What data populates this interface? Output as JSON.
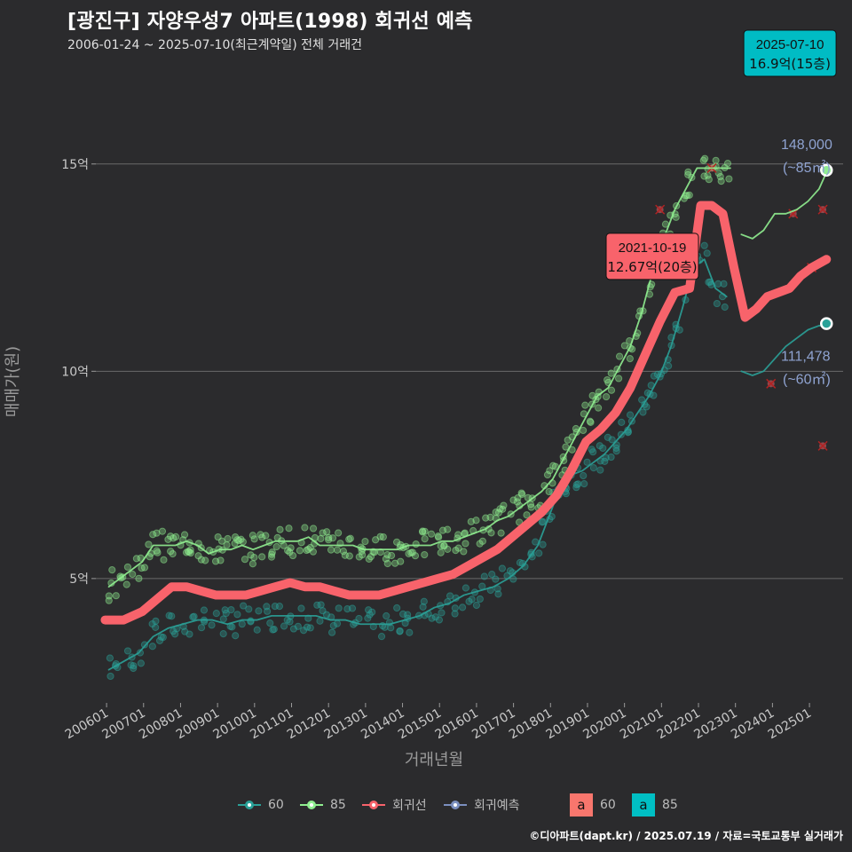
{
  "header": {
    "title": "[광진구] 자양우성7 아파트(1998) 회귀선 예측",
    "subtitle": "2006-01-24 ~ 2025-07-10(최근계약일) 전체 거래건"
  },
  "footer": "©디아파트(dapt.kr) / 2025.07.19 / 자료=국토교통부 실거래가",
  "colors": {
    "background": "#2b2b2d",
    "s60": "#2aa198",
    "s85": "#90ee90",
    "regression": "#f8636b",
    "forecast": "#7b8fbf",
    "callout_cyan": "#00bcc4"
  },
  "legend": {
    "items": [
      {
        "label": "60",
        "color": "#2aa198"
      },
      {
        "label": "85",
        "color": "#90ee90"
      },
      {
        "label": "회귀선",
        "color": "#f8636b"
      },
      {
        "label": "회귀예측",
        "color": "#7b8fbf"
      }
    ],
    "boxes": [
      {
        "letter": "a",
        "label": "60",
        "color": "#f8766d"
      },
      {
        "letter": "a",
        "label": "85",
        "color": "#00bfc4"
      }
    ]
  },
  "chart_data": {
    "type": "line",
    "title": "[광진구] 자양우성7 아파트(1998) 회귀선 예측",
    "xlabel": "거래년월",
    "ylabel": "매매가(원)",
    "x_ticks": [
      "200601",
      "200701",
      "200801",
      "200901",
      "201001",
      "201101",
      "201201",
      "201301",
      "201401",
      "201501",
      "201601",
      "201701",
      "201801",
      "201901",
      "202001",
      "202101",
      "202201",
      "202301",
      "202401",
      "202501"
    ],
    "y_ticks": [
      {
        "value": 5,
        "label": "5억"
      },
      {
        "value": 10,
        "label": "10억"
      },
      {
        "value": 15,
        "label": "15억"
      }
    ],
    "ylim": [
      2,
      17.5
    ],
    "xlim": [
      2005.75,
      2025.95
    ],
    "unit": "억",
    "series": [
      {
        "name": "60",
        "type": "line",
        "color": "#2aa198",
        "x": [
          2006.1,
          2006.5,
          2006.9,
          2007.3,
          2007.7,
          2008.1,
          2008.5,
          2008.9,
          2009.3,
          2009.7,
          2010.1,
          2010.5,
          2010.9,
          2011.3,
          2011.7,
          2012.1,
          2012.5,
          2012.9,
          2013.3,
          2013.7,
          2014.1,
          2014.5,
          2014.9,
          2015.3,
          2015.7,
          2016.1,
          2016.5,
          2016.9,
          2017.3,
          2017.7,
          2018.0,
          2018.3,
          2018.6,
          2018.9,
          2019.2,
          2019.5,
          2019.8,
          2020.1,
          2020.4,
          2020.7,
          2021.0,
          2021.3,
          2021.6,
          2021.9,
          2022.2,
          2022.5,
          2022.8
        ],
        "y": [
          2.8,
          3.0,
          3.2,
          3.6,
          3.8,
          3.9,
          4.0,
          4.0,
          3.9,
          4.0,
          4.0,
          4.1,
          4.1,
          4.1,
          4.1,
          4.0,
          4.0,
          3.9,
          3.9,
          3.9,
          4.0,
          4.1,
          4.3,
          4.4,
          4.6,
          4.7,
          4.8,
          5.0,
          5.3,
          5.8,
          6.5,
          7.2,
          7.5,
          7.6,
          7.8,
          8.0,
          8.3,
          8.6,
          9.0,
          9.4,
          9.9,
          10.6,
          11.5,
          12.5,
          12.7,
          12.0,
          11.8
        ]
      },
      {
        "name": "60 예측",
        "type": "line",
        "color": "#2aa198",
        "x": [
          2023.2,
          2023.5,
          2023.8,
          2024.1,
          2024.4,
          2024.7,
          2025.0,
          2025.3,
          2025.5
        ],
        "y": [
          10.0,
          9.9,
          10.0,
          10.3,
          10.6,
          10.8,
          11.0,
          11.1,
          11.1
        ]
      },
      {
        "name": "85",
        "type": "line",
        "color": "#90ee90",
        "x": [
          2006.1,
          2006.4,
          2006.7,
          2007.0,
          2007.3,
          2007.6,
          2007.9,
          2008.2,
          2008.5,
          2008.8,
          2009.1,
          2009.4,
          2009.7,
          2010.0,
          2010.3,
          2010.6,
          2010.9,
          2011.2,
          2011.5,
          2011.8,
          2012.1,
          2012.4,
          2012.7,
          2013.0,
          2013.3,
          2013.6,
          2013.9,
          2014.2,
          2014.5,
          2014.8,
          2015.1,
          2015.4,
          2015.7,
          2016.0,
          2016.3,
          2016.6,
          2016.9,
          2017.2,
          2017.5,
          2017.8,
          2018.1,
          2018.4,
          2018.7,
          2019.0,
          2019.3,
          2019.6,
          2019.9,
          2020.2,
          2020.5,
          2020.8,
          2021.1,
          2021.4,
          2021.7,
          2022.0,
          2022.3,
          2022.6,
          2022.9
        ],
        "y": [
          4.8,
          5.0,
          5.2,
          5.4,
          5.8,
          5.8,
          5.8,
          5.9,
          5.8,
          5.6,
          5.7,
          5.7,
          5.8,
          5.7,
          5.8,
          5.9,
          5.9,
          5.9,
          6.0,
          5.8,
          5.8,
          5.8,
          5.8,
          5.7,
          5.7,
          5.7,
          5.7,
          5.8,
          5.8,
          5.8,
          5.9,
          5.9,
          6.0,
          6.1,
          6.2,
          6.4,
          6.5,
          6.7,
          6.9,
          7.1,
          7.4,
          7.9,
          8.4,
          8.9,
          9.4,
          9.6,
          10.1,
          10.6,
          11.4,
          12.4,
          13.2,
          13.9,
          14.4,
          14.9,
          14.9,
          14.9,
          14.9
        ]
      },
      {
        "name": "85 예측",
        "type": "line",
        "color": "#90ee90",
        "x": [
          2023.2,
          2023.5,
          2023.8,
          2024.1,
          2024.4,
          2024.7,
          2025.0,
          2025.3,
          2025.5
        ],
        "y": [
          13.3,
          13.2,
          13.4,
          13.8,
          13.8,
          13.9,
          14.1,
          14.4,
          14.8
        ]
      },
      {
        "name": "회귀선",
        "type": "line",
        "color": "#f8636b",
        "x": [
          2006.0,
          2006.5,
          2007.0,
          2007.4,
          2007.8,
          2008.2,
          2008.6,
          2009.0,
          2009.4,
          2009.8,
          2010.2,
          2010.6,
          2011.0,
          2011.4,
          2011.8,
          2012.2,
          2012.6,
          2013.0,
          2013.4,
          2013.8,
          2014.2,
          2014.6,
          2015.0,
          2015.4,
          2015.8,
          2016.2,
          2016.6,
          2017.0,
          2017.4,
          2017.8,
          2018.2,
          2018.6,
          2019.0,
          2019.4,
          2019.8,
          2020.2,
          2020.6,
          2021.0,
          2021.4,
          2021.8,
          2022.1,
          2022.4,
          2022.7,
          2023.0,
          2023.3,
          2023.6,
          2023.9,
          2024.2,
          2024.5,
          2024.8,
          2025.1,
          2025.5
        ],
        "y": [
          4.0,
          4.0,
          4.2,
          4.5,
          4.8,
          4.8,
          4.7,
          4.6,
          4.6,
          4.6,
          4.7,
          4.8,
          4.9,
          4.8,
          4.8,
          4.7,
          4.6,
          4.6,
          4.6,
          4.7,
          4.8,
          4.9,
          5.0,
          5.1,
          5.3,
          5.5,
          5.7,
          6.0,
          6.3,
          6.6,
          7.0,
          7.6,
          8.3,
          8.6,
          9.0,
          9.6,
          10.4,
          11.2,
          11.9,
          12.0,
          14.0,
          14.0,
          13.8,
          12.5,
          11.3,
          11.5,
          11.8,
          11.9,
          12.0,
          12.3,
          12.5,
          12.7
        ]
      }
    ],
    "forecast_labels": [
      {
        "x": 2025.5,
        "y": 14.85,
        "value": "148,000",
        "area": "(~85㎡)",
        "color": "#90ee90"
      },
      {
        "x": 2025.5,
        "y": 11.15,
        "value": "111,478",
        "area": "(~60㎡)",
        "color": "#2aa198"
      }
    ],
    "annotations": [
      {
        "date": "2021-10-19",
        "text": "12.67억(20층)",
        "x": 2021.8,
        "y": 12.0,
        "color": "#f8636b"
      },
      {
        "date": "2025-07-10",
        "text": "16.9억(15층)",
        "x": 2025.52,
        "y": 16.9,
        "color": "#00bcc4"
      }
    ]
  }
}
